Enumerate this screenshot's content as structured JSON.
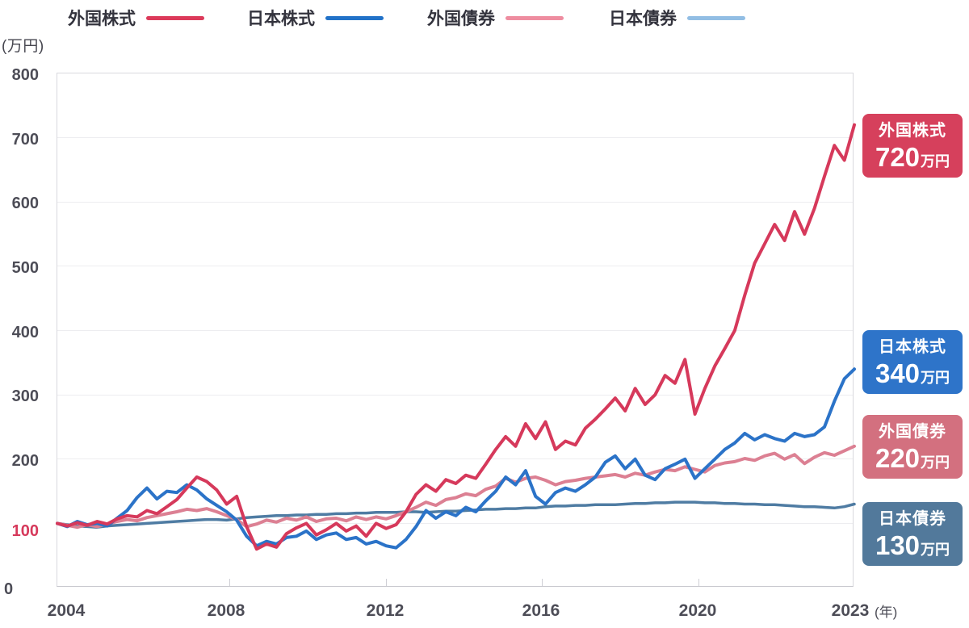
{
  "header": {
    "y_unit_label": "(万円)",
    "x_unit_suffix": "(年)"
  },
  "legend": [
    {
      "label": "外国株式",
      "swatch_color": "#dc3a5a"
    },
    {
      "label": "日本株式",
      "swatch_color": "#2272c8"
    },
    {
      "label": "外国債券",
      "swatch_color": "#ee8da0"
    },
    {
      "label": "日本債券",
      "swatch_color": "#92bee4"
    }
  ],
  "chart_data": {
    "type": "line",
    "title": "",
    "x_start": 2004,
    "x_end": 2024,
    "points_per_year": 4,
    "x_tick_labels": [
      "2004",
      "2008",
      "2012",
      "2016",
      "2020",
      "2023"
    ],
    "y_tick_labels": [
      "800",
      "700",
      "600",
      "500",
      "400",
      "300",
      "200",
      "100",
      "0"
    ],
    "ylim": [
      0,
      800
    ],
    "grid": "horizontal",
    "legend_position": "top",
    "series": [
      {
        "name": "外国株式",
        "color": "#d6395b",
        "stroke_width": 4,
        "final_value_label": "720万円",
        "values": [
          100,
          96,
          101,
          97,
          103,
          99,
          107,
          112,
          110,
          120,
          115,
          126,
          137,
          155,
          172,
          165,
          152,
          130,
          142,
          95,
          60,
          68,
          63,
          84,
          93,
          100,
          82,
          90,
          100,
          88,
          96,
          80,
          100,
          92,
          98,
          118,
          145,
          160,
          150,
          168,
          162,
          175,
          170,
          192,
          215,
          235,
          220,
          255,
          232,
          258,
          215,
          228,
          222,
          248,
          262,
          278,
          295,
          275,
          310,
          285,
          300,
          330,
          318,
          355,
          270,
          310,
          345,
          372,
          400,
          455,
          505,
          535,
          565,
          540,
          585,
          550,
          590,
          640,
          688,
          665,
          720
        ]
      },
      {
        "name": "日本株式",
        "color": "#2b73c8",
        "stroke_width": 4,
        "final_value_label": "340万円",
        "values": [
          100,
          95,
          103,
          98,
          100,
          96,
          108,
          120,
          140,
          155,
          138,
          150,
          148,
          160,
          152,
          138,
          128,
          118,
          105,
          80,
          65,
          72,
          68,
          78,
          80,
          88,
          75,
          82,
          85,
          75,
          78,
          68,
          72,
          65,
          62,
          75,
          95,
          120,
          108,
          118,
          112,
          125,
          118,
          135,
          150,
          172,
          160,
          182,
          142,
          130,
          148,
          155,
          150,
          160,
          172,
          195,
          205,
          185,
          200,
          175,
          168,
          185,
          192,
          200,
          170,
          185,
          200,
          215,
          225,
          240,
          230,
          238,
          232,
          228,
          240,
          235,
          238,
          250,
          290,
          325,
          340
        ]
      },
      {
        "name": "外国債券",
        "color": "#dc8093",
        "stroke_width": 4,
        "final_value_label": "220万円",
        "values": [
          100,
          97,
          94,
          98,
          95,
          99,
          103,
          106,
          104,
          109,
          112,
          115,
          118,
          122,
          120,
          123,
          118,
          112,
          106,
          95,
          99,
          105,
          102,
          108,
          105,
          110,
          103,
          107,
          108,
          104,
          110,
          106,
          110,
          107,
          112,
          118,
          125,
          133,
          128,
          137,
          140,
          146,
          143,
          153,
          158,
          170,
          164,
          170,
          172,
          167,
          160,
          165,
          167,
          170,
          172,
          174,
          176,
          172,
          178,
          175,
          180,
          184,
          182,
          188,
          184,
          180,
          190,
          194,
          196,
          201,
          198,
          205,
          209,
          200,
          207,
          193,
          203,
          210,
          206,
          213,
          220
        ]
      },
      {
        "name": "日本債券",
        "color": "#4f7ca3",
        "stroke_width": 3.5,
        "final_value_label": "130万円",
        "values": [
          100,
          98,
          96,
          95,
          94,
          96,
          97,
          98,
          99,
          100,
          101,
          102,
          103,
          104,
          105,
          106,
          106,
          105,
          107,
          109,
          110,
          111,
          112,
          112,
          113,
          113,
          114,
          114,
          115,
          115,
          116,
          116,
          117,
          117,
          117,
          118,
          118,
          117,
          118,
          119,
          119,
          120,
          121,
          122,
          122,
          123,
          123,
          124,
          124,
          126,
          127,
          127,
          128,
          128,
          129,
          129,
          129,
          130,
          131,
          131,
          132,
          132,
          133,
          133,
          133,
          132,
          132,
          131,
          131,
          130,
          130,
          129,
          129,
          128,
          127,
          126,
          126,
          125,
          124,
          126,
          130
        ]
      }
    ]
  },
  "badges": [
    {
      "title": "外国株式",
      "value": "720",
      "unit": "万円",
      "bg": "#d6405c"
    },
    {
      "title": "日本株式",
      "value": "340",
      "unit": "万円",
      "bg": "#2e74c9"
    },
    {
      "title": "外国債券",
      "value": "220",
      "unit": "万円",
      "bg": "#d3707f"
    },
    {
      "title": "日本債券",
      "value": "130",
      "unit": "万円",
      "bg": "#52799b"
    }
  ],
  "colors": {
    "emphasized_y_tick": "#d6395b",
    "tick_text": "#4d4d57",
    "gridline": "#ededf0"
  }
}
